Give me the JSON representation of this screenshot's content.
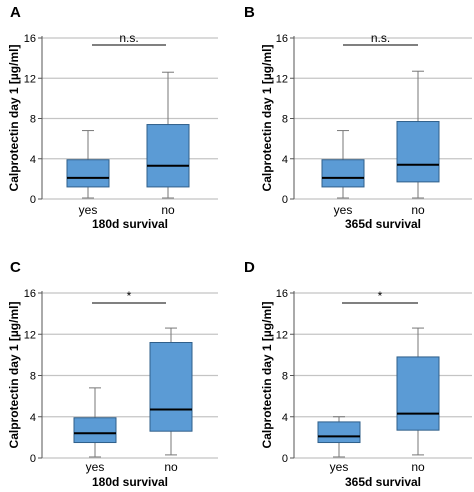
{
  "chart_data": [
    {
      "panel": "A",
      "type": "box",
      "ylabel": "Calprotectin day 1 [µg/ml]",
      "xlabel": "180d survival",
      "ylim": [
        0,
        16
      ],
      "yticks": [
        0,
        4,
        8,
        12,
        16
      ],
      "grid": true,
      "categories": [
        "yes",
        "no"
      ],
      "boxes": [
        {
          "min": 0.1,
          "q1": 1.2,
          "median": 2.1,
          "q3": 3.9,
          "max": 6.8
        },
        {
          "min": 0.1,
          "q1": 1.2,
          "median": 3.3,
          "q3": 7.4,
          "max": 12.6
        }
      ],
      "significance": "n.s."
    },
    {
      "panel": "B",
      "type": "box",
      "ylabel": "Calprotectin day 1 [µg/ml]",
      "xlabel": "365d survival",
      "ylim": [
        0,
        16
      ],
      "yticks": [
        0,
        4,
        8,
        12,
        16
      ],
      "grid": true,
      "categories": [
        "yes",
        "no"
      ],
      "boxes": [
        {
          "min": 0.1,
          "q1": 1.2,
          "median": 2.1,
          "q3": 3.9,
          "max": 6.8
        },
        {
          "min": 0.1,
          "q1": 1.7,
          "median": 3.4,
          "q3": 7.7,
          "max": 12.7
        }
      ],
      "significance": "n.s."
    },
    {
      "panel": "C",
      "type": "box",
      "ylabel": "Calprotectin day 1 [µg/ml]",
      "xlabel": "180d survival",
      "ylim": [
        0,
        16
      ],
      "yticks": [
        0,
        4,
        8,
        12,
        16
      ],
      "grid": true,
      "categories": [
        "yes",
        "no"
      ],
      "boxes": [
        {
          "min": 0.1,
          "q1": 1.5,
          "median": 2.4,
          "q3": 3.9,
          "max": 6.8
        },
        {
          "min": 0.3,
          "q1": 2.6,
          "median": 4.7,
          "q3": 11.2,
          "max": 12.6
        }
      ],
      "significance": "*"
    },
    {
      "panel": "D",
      "type": "box",
      "ylabel": "Calprotectin day 1 [µg/ml]",
      "xlabel": "365d survival",
      "ylim": [
        0,
        16
      ],
      "yticks": [
        0,
        4,
        8,
        12,
        16
      ],
      "grid": true,
      "categories": [
        "yes",
        "no"
      ],
      "boxes": [
        {
          "min": 0.1,
          "q1": 1.5,
          "median": 2.1,
          "q3": 3.5,
          "max": 4.0
        },
        {
          "min": 0.3,
          "q1": 2.7,
          "median": 4.3,
          "q3": 9.8,
          "max": 12.6
        }
      ],
      "significance": "*"
    }
  ],
  "colors": {
    "box_fill": "#5b9bd5",
    "box_stroke": "#2f5f8a",
    "grid": "#c4c4c4",
    "axis": "#555555",
    "whisker": "#777777",
    "median": "#000000",
    "text": "#000000"
  }
}
